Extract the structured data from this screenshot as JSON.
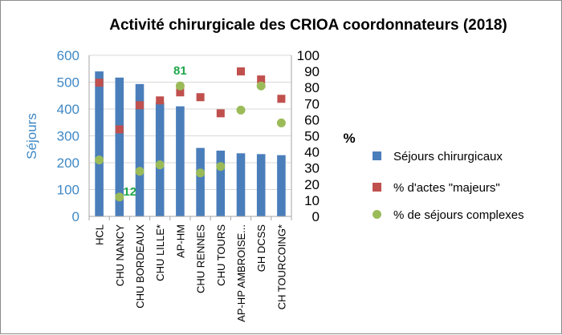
{
  "chart_data": {
    "type": "bar",
    "title": "Activité chirurgicale des CRIOA coordonnateurs (2018)",
    "categories": [
      "HCL",
      "CHU NANCY",
      "CHU BORDEAUX",
      "CHU LILLE*",
      "AP-HM",
      "CHU RENNES",
      "CHU TOURS",
      "AP-HP AMBROISE...",
      "GH DCSS",
      "CH TOURCOING*"
    ],
    "ylabel": "Séjours",
    "y2label": "%",
    "ylim": [
      0,
      600
    ],
    "y2lim": [
      0,
      100
    ],
    "yticks": [
      "0",
      "100",
      "200",
      "300",
      "400",
      "500",
      "600"
    ],
    "y2ticks": [
      "0",
      "10",
      "20",
      "30",
      "40",
      "50",
      "60",
      "70",
      "80",
      "90",
      "100"
    ],
    "series": [
      {
        "name": "Séjours chirurgicaux",
        "type": "bar",
        "axis": "left",
        "color": "#4a7ebb",
        "values": [
          540,
          517,
          493,
          425,
          410,
          255,
          245,
          235,
          232,
          228
        ]
      },
      {
        "name": "% d'actes \"majeurs\"",
        "type": "scatter",
        "axis": "right",
        "marker": "square",
        "color": "#c0504d",
        "values": [
          83,
          54,
          69,
          72,
          77,
          74,
          64,
          90,
          85,
          73
        ]
      },
      {
        "name": "% de séjours complexes",
        "type": "scatter",
        "axis": "right",
        "marker": "circle",
        "color": "#9bbb59",
        "values": [
          35,
          12,
          28,
          32,
          81,
          27,
          31,
          66,
          81,
          58
        ]
      }
    ],
    "annotations": [
      {
        "text": "81",
        "category": "AP-HM"
      },
      {
        "text": "12",
        "category": "CHU NANCY"
      }
    ],
    "legend": "right"
  }
}
